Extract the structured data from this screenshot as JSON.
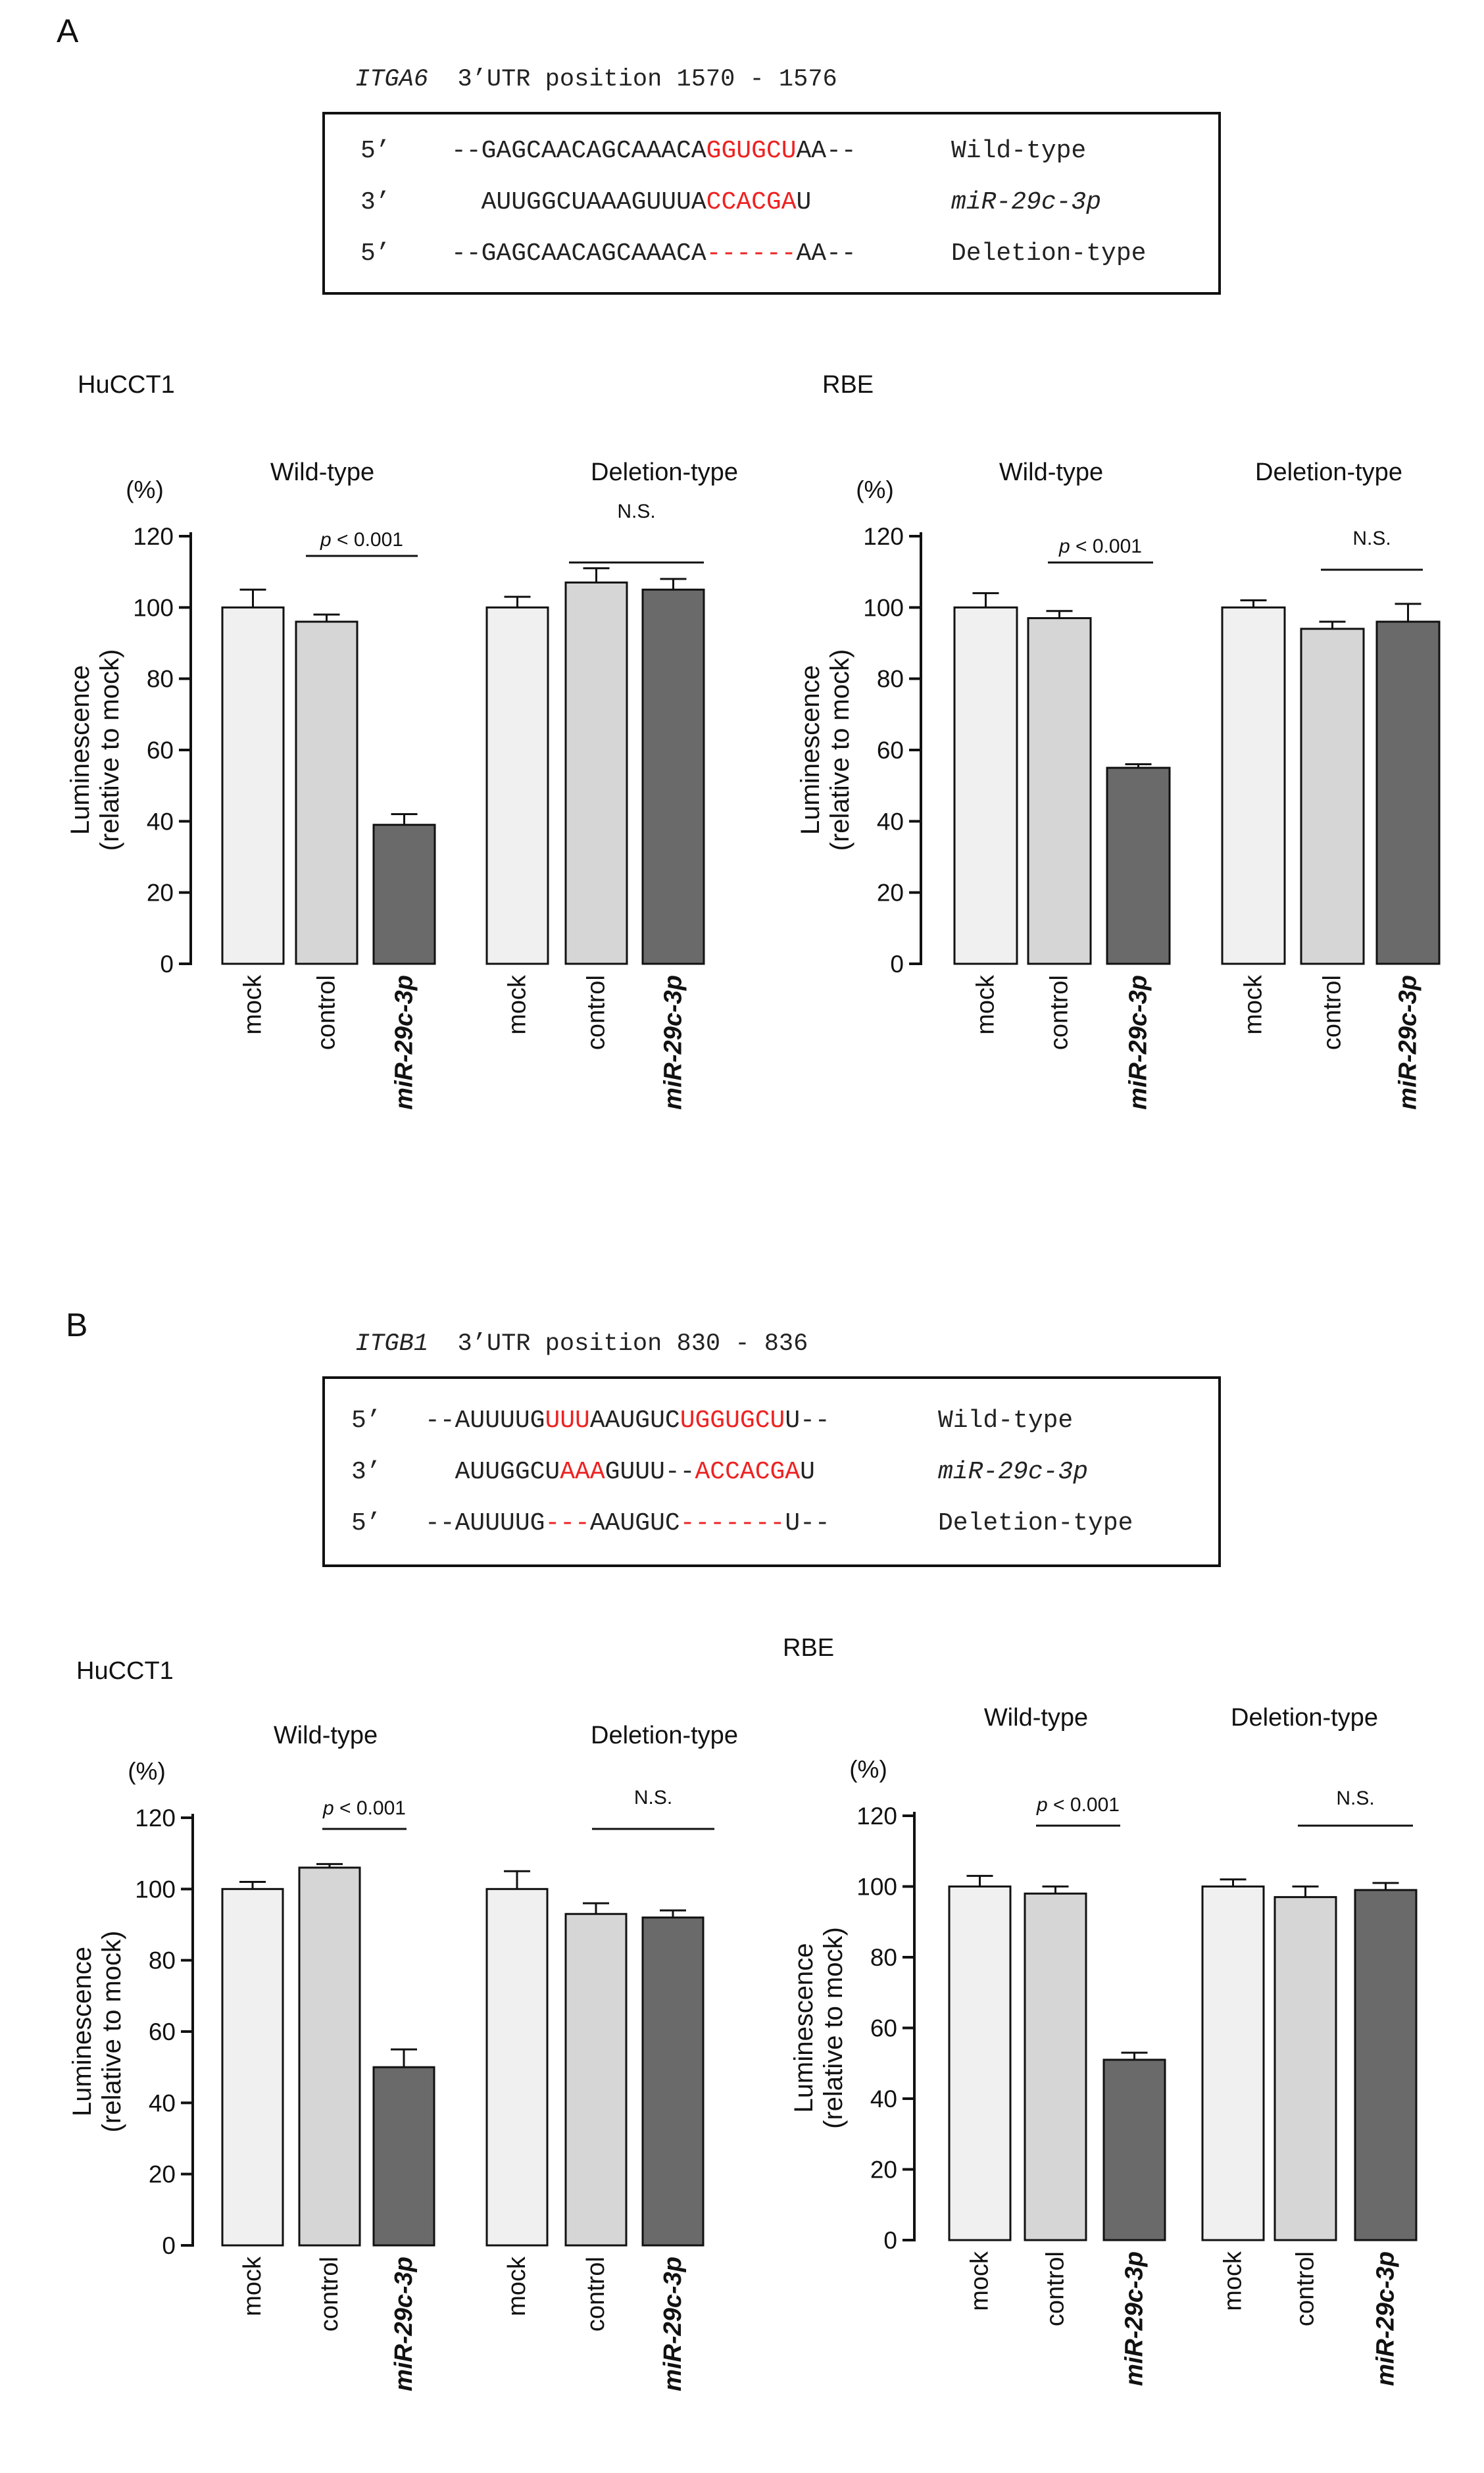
{
  "panels": [
    {
      "letter": "A",
      "sequence": {
        "gene": "ITGA6",
        "title_rest": "3’UTR position 1570 - 1576",
        "rows": [
          {
            "prime": "5’",
            "segments": [
              {
                "t": "--GAGCAACAGCAAACA",
                "red": false
              },
              {
                "t": "GGUGCU",
                "red": true
              },
              {
                "t": "AA--",
                "red": false
              }
            ],
            "label": "Wild-type",
            "italic": false
          },
          {
            "prime": "3’",
            "segments": [
              {
                "t": "  AUUGGCUAAAGUUUA",
                "red": false
              },
              {
                "t": "CCACGA",
                "red": true
              },
              {
                "t": "U",
                "red": false
              }
            ],
            "label": "miR-29c-3p",
            "italic": true
          },
          {
            "prime": "5’",
            "segments": [
              {
                "t": "--GAGCAACAGCAAACA",
                "red": false
              },
              {
                "t": "------",
                "red": true
              },
              {
                "t": "AA--",
                "red": false
              }
            ],
            "label": "Deletion-type",
            "italic": false
          }
        ]
      }
    },
    {
      "letter": "B",
      "sequence": {
        "gene": "ITGB1",
        "title_rest": "3’UTR position 830 - 836",
        "rows": [
          {
            "prime": "5’",
            "segments": [
              {
                "t": "--AUUUUG",
                "red": false
              },
              {
                "t": "UUU",
                "red": true
              },
              {
                "t": "AAUGUC",
                "red": false
              },
              {
                "t": "UGGUGCU",
                "red": true
              },
              {
                "t": "U--",
                "red": false
              }
            ],
            "label": "Wild-type",
            "italic": false
          },
          {
            "prime": "3’",
            "segments": [
              {
                "t": "  AUUGGCU",
                "red": false
              },
              {
                "t": "AAA",
                "red": true
              },
              {
                "t": "GUUU--",
                "red": false
              },
              {
                "t": "ACCACGA",
                "red": true
              },
              {
                "t": "U",
                "red": false
              }
            ],
            "label": "miR-29c-3p",
            "italic": true
          },
          {
            "prime": "5’",
            "segments": [
              {
                "t": "--AUUUUG",
                "red": false
              },
              {
                "t": "---",
                "red": true
              },
              {
                "t": "AAUGUC",
                "red": false
              },
              {
                "t": "-------",
                "red": true
              },
              {
                "t": "U--",
                "red": false
              }
            ],
            "label": "Deletion-type",
            "italic": false
          }
        ]
      }
    }
  ],
  "chart_data": [
    {
      "type": "bar",
      "panel": "A",
      "cell_line": "HuCCT1",
      "groups": [
        "Wild-type",
        "Deletion-type"
      ],
      "categories": [
        "mock",
        "control",
        "miR-29c-3p",
        "mock",
        "control",
        "miR-29c-3p"
      ],
      "values": [
        100,
        96,
        39,
        100,
        107,
        105
      ],
      "errors": [
        5,
        2,
        3,
        3,
        4,
        3
      ],
      "bar_colors": [
        "#f0f0f0",
        "#d6d6d6",
        "#6a6a6a",
        "#f0f0f0",
        "#d6d6d6",
        "#6a6a6a"
      ],
      "significance": [
        {
          "group": "Wild-type",
          "text_italic": "p",
          "text": " < 0.001"
        },
        {
          "group": "Deletion-type",
          "text_italic": "",
          "text": "N.S."
        }
      ],
      "ylabel": "Luminescence",
      "ylabel2": "(relative to mock)",
      "yunit": "(%)",
      "ylim": [
        0,
        120
      ],
      "yticks": [
        0,
        20,
        40,
        60,
        80,
        100,
        120
      ]
    },
    {
      "type": "bar",
      "panel": "A",
      "cell_line": "RBE",
      "groups": [
        "Wild-type",
        "Deletion-type"
      ],
      "categories": [
        "mock",
        "control",
        "miR-29c-3p",
        "mock",
        "control",
        "miR-29c-3p"
      ],
      "values": [
        100,
        97,
        55,
        100,
        94,
        96
      ],
      "errors": [
        4,
        2,
        1,
        2,
        2,
        5
      ],
      "bar_colors": [
        "#f0f0f0",
        "#d6d6d6",
        "#6a6a6a",
        "#f0f0f0",
        "#d6d6d6",
        "#6a6a6a"
      ],
      "significance": [
        {
          "group": "Wild-type",
          "text_italic": "p",
          "text": " < 0.001"
        },
        {
          "group": "Deletion-type",
          "text_italic": "",
          "text": "N.S."
        }
      ],
      "ylabel": "Luminescence",
      "ylabel2": "(relative to mock)",
      "yunit": "(%)",
      "ylim": [
        0,
        120
      ],
      "yticks": [
        0,
        20,
        40,
        60,
        80,
        100,
        120
      ]
    },
    {
      "type": "bar",
      "panel": "B",
      "cell_line": "HuCCT1",
      "groups": [
        "Wild-type",
        "Deletion-type"
      ],
      "categories": [
        "mock",
        "control",
        "miR-29c-3p",
        "mock",
        "control",
        "miR-29c-3p"
      ],
      "values": [
        100,
        106,
        50,
        100,
        93,
        92
      ],
      "errors": [
        2,
        1,
        5,
        5,
        3,
        2
      ],
      "bar_colors": [
        "#f0f0f0",
        "#d6d6d6",
        "#6a6a6a",
        "#f0f0f0",
        "#d6d6d6",
        "#6a6a6a"
      ],
      "significance": [
        {
          "group": "Wild-type",
          "text_italic": "p",
          "text": " < 0.001"
        },
        {
          "group": "Deletion-type",
          "text_italic": "",
          "text": "N.S."
        }
      ],
      "ylabel": "Luminescence",
      "ylabel2": "(relative to mock)",
      "yunit": "(%)",
      "ylim": [
        0,
        120
      ],
      "yticks": [
        0,
        20,
        40,
        60,
        80,
        100,
        120
      ]
    },
    {
      "type": "bar",
      "panel": "B",
      "cell_line": "RBE",
      "groups": [
        "Wild-type",
        "Deletion-type"
      ],
      "categories": [
        "mock",
        "control",
        "miR-29c-3p",
        "mock",
        "control",
        "miR-29c-3p"
      ],
      "values": [
        100,
        98,
        51,
        100,
        97,
        99
      ],
      "errors": [
        3,
        2,
        2,
        2,
        3,
        2
      ],
      "bar_colors": [
        "#f0f0f0",
        "#d6d6d6",
        "#6a6a6a",
        "#f0f0f0",
        "#d6d6d6",
        "#6a6a6a"
      ],
      "significance": [
        {
          "group": "Wild-type",
          "text_italic": "p",
          "text": " < 0.001"
        },
        {
          "group": "Deletion-type",
          "text_italic": "",
          "text": "N.S."
        }
      ],
      "ylabel": "Luminescence",
      "ylabel2": "(relative to mock)",
      "yunit": "(%)",
      "ylim": [
        0,
        120
      ],
      "yticks": [
        0,
        20,
        40,
        60,
        80,
        100,
        120
      ]
    }
  ]
}
